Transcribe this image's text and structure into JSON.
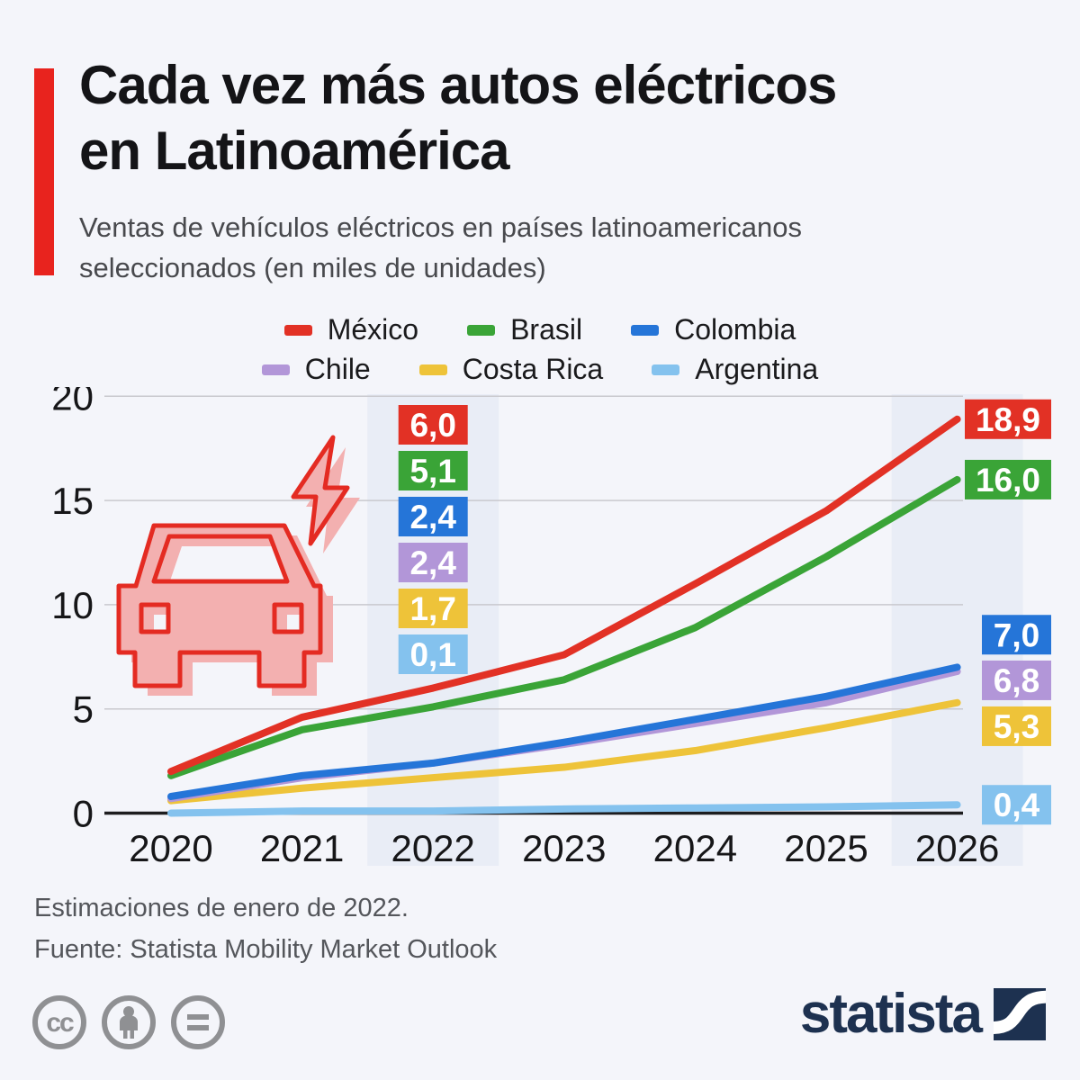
{
  "header": {
    "title_line1": "Cada vez más autos eléctricos",
    "title_line2": "en Latinoamérica",
    "subtitle": "Ventas de vehículos eléctricos en países latinoamericanos seleccionados (en miles de unidades)"
  },
  "chart_data": {
    "type": "line",
    "title": "Ventas de vehículos eléctricos en países latinoamericanos seleccionados (en miles de unidades)",
    "categories": [
      "2020",
      "2021",
      "2022",
      "2023",
      "2024",
      "2025",
      "2026"
    ],
    "series": [
      {
        "name": "México",
        "color": "#e23125",
        "values": [
          2.0,
          4.6,
          6.0,
          7.6,
          11.0,
          14.5,
          18.9
        ],
        "label_2022": "6,0",
        "label_2026": "18,9"
      },
      {
        "name": "Brasil",
        "color": "#3aa437",
        "values": [
          1.8,
          4.0,
          5.1,
          6.4,
          8.9,
          12.3,
          16.0
        ],
        "label_2022": "5,1",
        "label_2026": "16,0"
      },
      {
        "name": "Colombia",
        "color": "#2575d8",
        "values": [
          0.8,
          1.8,
          2.4,
          3.4,
          4.5,
          5.6,
          7.0
        ],
        "label_2022": "2,4",
        "label_2026": "7,0"
      },
      {
        "name": "Chile",
        "color": "#b296d8",
        "values": [
          0.7,
          1.7,
          2.4,
          3.3,
          4.3,
          5.3,
          6.8
        ],
        "label_2022": "2,4",
        "label_2026": "6,8"
      },
      {
        "name": "Costa Rica",
        "color": "#eec339",
        "values": [
          0.6,
          1.2,
          1.7,
          2.2,
          3.0,
          4.1,
          5.3
        ],
        "label_2022": "1,7",
        "label_2026": "5,3"
      },
      {
        "name": "Argentina",
        "color": "#84c2ee",
        "values": [
          0.0,
          0.1,
          0.1,
          0.2,
          0.25,
          0.3,
          0.4
        ],
        "label_2022": "0,1",
        "label_2026": "0,4"
      }
    ],
    "ylim": [
      0,
      20
    ],
    "yticks": [
      0,
      5,
      10,
      15,
      20
    ],
    "highlighted_years": [
      "2022",
      "2026"
    ],
    "grid": true,
    "legend_position": "top",
    "decimal_separator": ","
  },
  "colors": {
    "background": "#f4f5fa",
    "accent_red": "#e8231e",
    "band": "#e9edf6",
    "gridline": "#c9c9ce",
    "axis_line": "#1d1d1f",
    "car_pink": "#f3b0b0",
    "car_outline_red": "#e42b22",
    "brand_navy": "#1d3150",
    "cc_gray": "#8f9093"
  },
  "footer": {
    "note": "Estimaciones de enero de 2022.",
    "source": "Fuente: Statista Mobility Market Outlook",
    "brand": "statista",
    "license_icons": [
      "cc-icon",
      "attribution-person-icon",
      "equals-nd-icon"
    ]
  }
}
